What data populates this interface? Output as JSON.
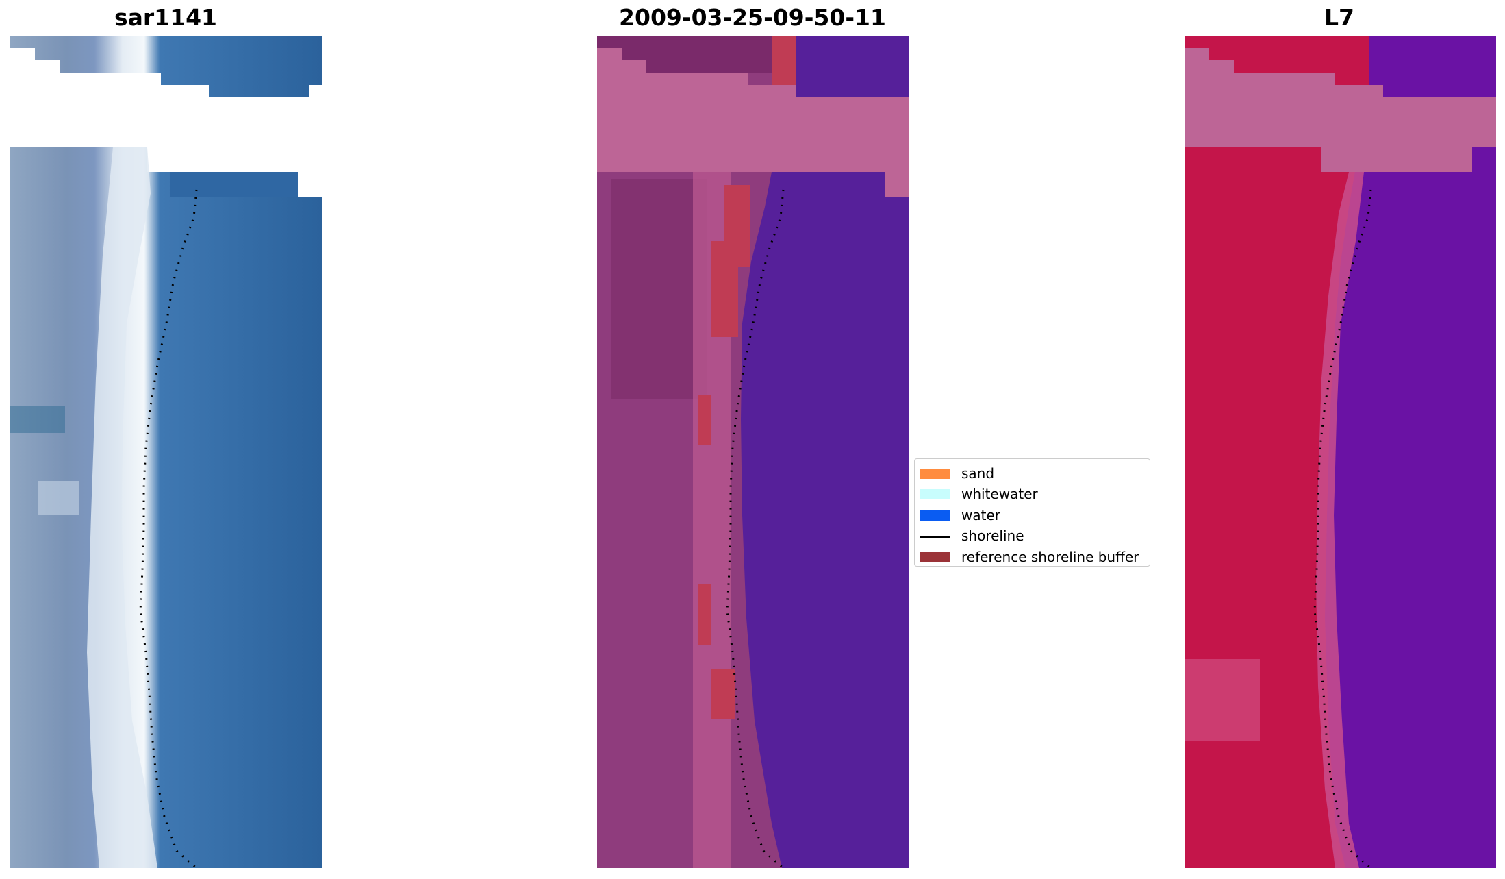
{
  "panels": {
    "left_title": "sar1141",
    "middle_title": "2009-03-25-09-50-11",
    "right_title": "L7"
  },
  "legend": {
    "items": [
      {
        "label": "sand",
        "kind": "patch",
        "color": "#ff8c3f"
      },
      {
        "label": "whitewater",
        "kind": "patch",
        "color": "#c8fdfd"
      },
      {
        "label": "water",
        "kind": "patch",
        "color": "#0a5cf2"
      },
      {
        "label": "shoreline",
        "kind": "line",
        "color": "#000000"
      },
      {
        "label": "reference shoreline buffer",
        "kind": "patch",
        "color": "#9b3338"
      }
    ]
  },
  "colors": {
    "rgb_water": "#2b629c",
    "rgb_surf": "#dce7ef",
    "rgb_land": "#7a93b6",
    "class_water": "#56209a",
    "class_land": "#8f3c7d",
    "class_buffer": "#c03c54",
    "class_nodata": "#bd6596",
    "nir_water": "#6a12a4",
    "nir_land": "#c4154a",
    "nir_nodata": "#bd6596",
    "shoreline": "#000000"
  }
}
